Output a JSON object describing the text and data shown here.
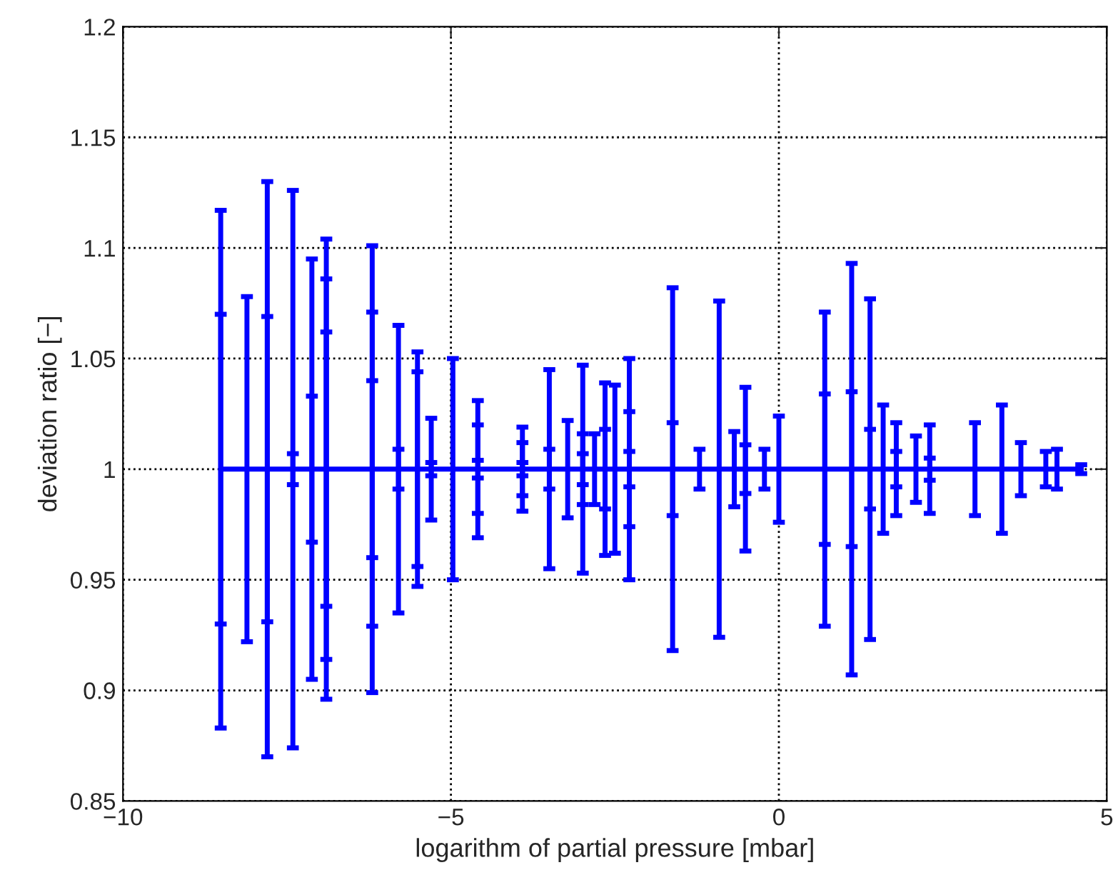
{
  "chart_data": {
    "type": "line",
    "xlabel": "logarithm of partial pressure [mbar]",
    "ylabel": "deviation ratio [−]",
    "xlim": [
      -10,
      5
    ],
    "xticks": [
      {
        "value": -10,
        "label": "−10"
      },
      {
        "value": -5,
        "label": "−5"
      },
      0,
      5
    ],
    "ylim": [
      0.85,
      1.2
    ],
    "yticks": [
      0.85,
      0.9,
      0.95,
      1,
      1.05,
      1.1,
      1.15,
      1.2
    ],
    "grid": true,
    "marker": "none",
    "series": [
      {
        "color": "#0000ff",
        "x": [
          -8.51,
          -8.51,
          -8.11,
          -7.8,
          -7.8,
          -7.41,
          -7.41,
          -7.12,
          -7.12,
          -6.9,
          -6.9,
          -6.9,
          -6.2,
          -6.2,
          -6.2,
          -5.8,
          -5.8,
          -5.51,
          -5.51,
          -5.3,
          -5.3,
          -4.97,
          -4.59,
          -4.59,
          -4.59,
          -3.91,
          -3.91,
          -3.91,
          -3.5,
          -3.5,
          -3.22,
          -2.99,
          -2.99,
          -2.99,
          -2.81,
          -2.65,
          -2.65,
          -2.5,
          -2.28,
          -2.28,
          -2.28,
          -1.62,
          -1.62,
          -1.21,
          -0.91,
          -0.68,
          -0.51,
          -0.51,
          -0.22,
          0.0,
          0.7,
          0.7,
          1.11,
          1.11,
          1.39,
          1.39,
          1.59,
          1.79,
          1.79,
          2.09,
          2.3,
          2.3,
          2.99,
          3.4,
          3.69,
          4.07,
          4.24,
          4.61
        ],
        "values": [
          1,
          1,
          1,
          1,
          1,
          1,
          1,
          1,
          1,
          1,
          1,
          1,
          1,
          1,
          1,
          1,
          1,
          1,
          1,
          1,
          1,
          1,
          1,
          1,
          1,
          1,
          1,
          1,
          1,
          1,
          1,
          1,
          1,
          1,
          1,
          1,
          1,
          1,
          1,
          1,
          1,
          1,
          1,
          1,
          1,
          1,
          1,
          1,
          1,
          1,
          1,
          1,
          1,
          1,
          1,
          1,
          1,
          1,
          1,
          1,
          1,
          1,
          1,
          1,
          1,
          1,
          1,
          1
        ],
        "errors": [
          0.117,
          0.07,
          0.078,
          0.13,
          0.069,
          0.126,
          0.007,
          0.095,
          0.033,
          0.104,
          0.086,
          0.062,
          0.101,
          0.071,
          0.04,
          0.065,
          0.009,
          0.053,
          0.044,
          0.023,
          0.003,
          0.05,
          0.031,
          0.02,
          0.004,
          0.019,
          0.012,
          0.003,
          0.045,
          0.009,
          0.022,
          0.047,
          0.016,
          0.007,
          0.016,
          0.039,
          0.018,
          0.038,
          0.05,
          0.026,
          0.008,
          0.082,
          0.021,
          0.009,
          0.076,
          0.017,
          0.037,
          0.011,
          0.009,
          0.024,
          0.071,
          0.034,
          0.093,
          0.035,
          0.077,
          0.018,
          0.029,
          0.021,
          0.008,
          0.015,
          0.02,
          0.005,
          0.021,
          0.029,
          0.012,
          0.008,
          0.009,
          0.002
        ]
      }
    ]
  }
}
